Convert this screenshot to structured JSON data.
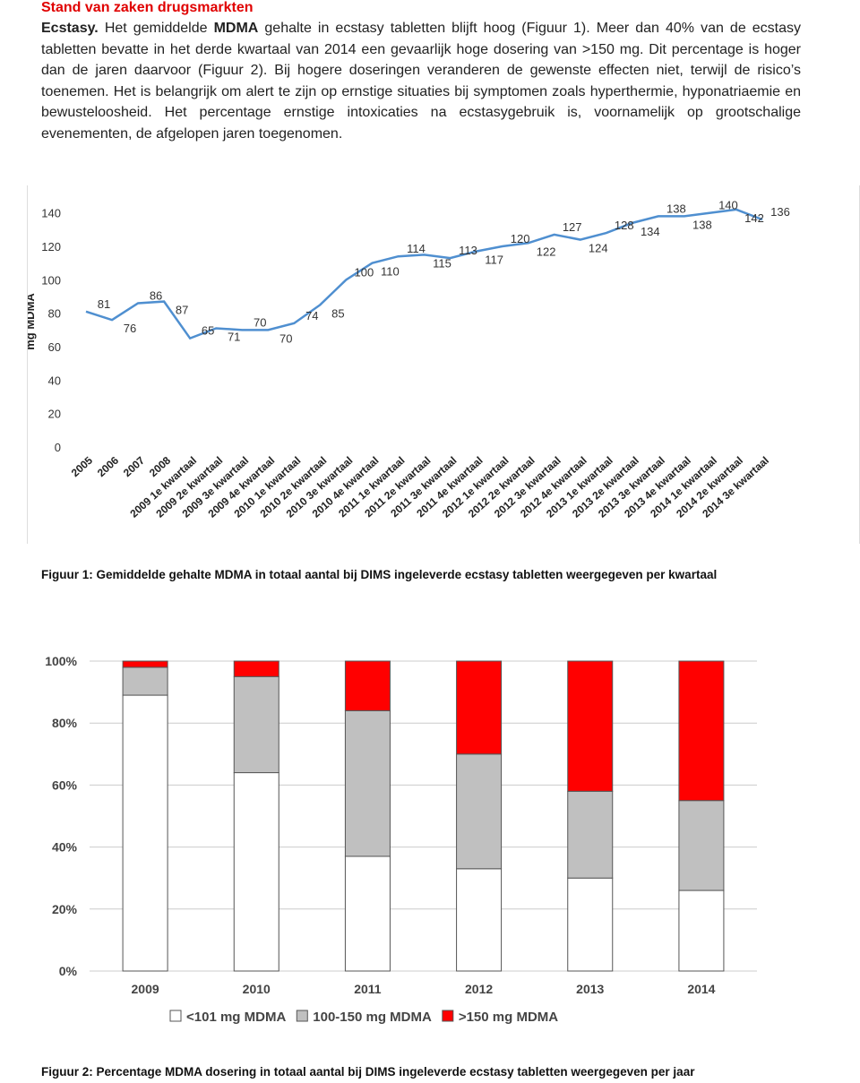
{
  "heading": "Stand van zaken drugsmarkten",
  "paragraph": {
    "parts": [
      {
        "text": "Ecstasy.",
        "bold": true
      },
      {
        "text": "Het gemiddelde",
        "bold": false
      },
      {
        "text": "MDMA",
        "bold": true
      },
      {
        "text": "gehalte in ecstasy tabletten blijft hoog (Figuur 1). Meer dan 40% van de ecstasy tabletten bevatte in het derde kwartaal van 2014 een gevaarlijk hoge dosering van >150 mg. Dit percentage is hoger dan de jaren daarvoor (Figuur 2). Bij hogere doseringen veranderen de gewenste effecten niet, terwijl de risico’s toenemen. Het is belangrijk om alert te zijn op ernstige situaties bij symptomen zoals hyperthermie, hyponatriaemie en bewusteloosheid. Het percentage ernstige intoxicaties na ecstasygebruik is, voornamelijk op grootschalige evenementen, de afgelopen jaren toegenomen.",
        "bold": false
      }
    ]
  },
  "chart_data": [
    {
      "type": "line",
      "y_label": "mg MDMA",
      "categories": [
        "2005",
        "2006",
        "2007",
        "2008",
        "2009 1e kwartaal",
        "2009 2e kwartaal",
        "2009 3e kwartaal",
        "2009 4e kwartaal",
        "2010 1e kwartaal",
        "2010 2e kwartaal",
        "2010 3e kwartaal",
        "2010 4e kwartaal",
        "2011 1e kwartaal",
        "2011 2e kwartaal",
        "2011 3e kwartaal",
        "2011 4e kwartaal",
        "2012 1e kwartaal",
        "2012 2e kwartaal",
        "2012 3e kwartaal",
        "2012 4e kwartaal",
        "2013 1e kwartaal",
        "2013 2e kwartaal",
        "2013 3e kwartaal",
        "2013 4e kwartaal",
        "2014 1e kwartaal",
        "2014 2e kwartaal",
        "2014 3e kwartaal"
      ],
      "values": [
        81,
        76,
        86,
        87,
        65,
        71,
        70,
        70,
        74,
        85,
        100,
        110,
        114,
        115,
        113,
        117,
        120,
        122,
        127,
        124,
        128,
        134,
        138,
        138,
        140,
        142,
        136
      ],
      "color": "#4f8fd0",
      "ylim": [
        0,
        150
      ],
      "yticks": [
        0,
        20,
        40,
        60,
        80,
        100,
        120,
        140
      ],
      "grid": false
    },
    {
      "type": "stacked-bar",
      "categories": [
        "2009",
        "2010",
        "2011",
        "2012",
        "2013",
        "2014"
      ],
      "series": [
        {
          "name": "<101 mg MDMA",
          "color": "#ffffff",
          "values": [
            89,
            64,
            37,
            33,
            30,
            26
          ]
        },
        {
          "name": "100-150 mg MDMA",
          "color": "#c0c0c0",
          "values": [
            9,
            31,
            47,
            37,
            28,
            29
          ]
        },
        {
          "name": ">150 mg MDMA",
          "color": "#ff0000",
          "values": [
            2,
            5,
            16,
            30,
            42,
            45
          ]
        }
      ],
      "ylim": [
        0,
        100
      ],
      "yticks": [
        {
          "value": 0,
          "label": "0%"
        },
        {
          "value": 20,
          "label": "20%"
        },
        {
          "value": 40,
          "label": "40%"
        },
        {
          "value": 60,
          "label": "60%"
        },
        {
          "value": 80,
          "label": "80%"
        },
        {
          "value": 100,
          "label": "100%"
        }
      ],
      "grid": true
    }
  ],
  "captions": [
    "Figuur 1: Gemiddelde gehalte MDMA in totaal aantal bij DIMS ingeleverde ecstasy tabletten weergegeven per kwartaal",
    "Figuur 2: Percentage MDMA dosering in totaal aantal bij DIMS ingeleverde ecstasy tabletten weergegeven per jaar"
  ]
}
